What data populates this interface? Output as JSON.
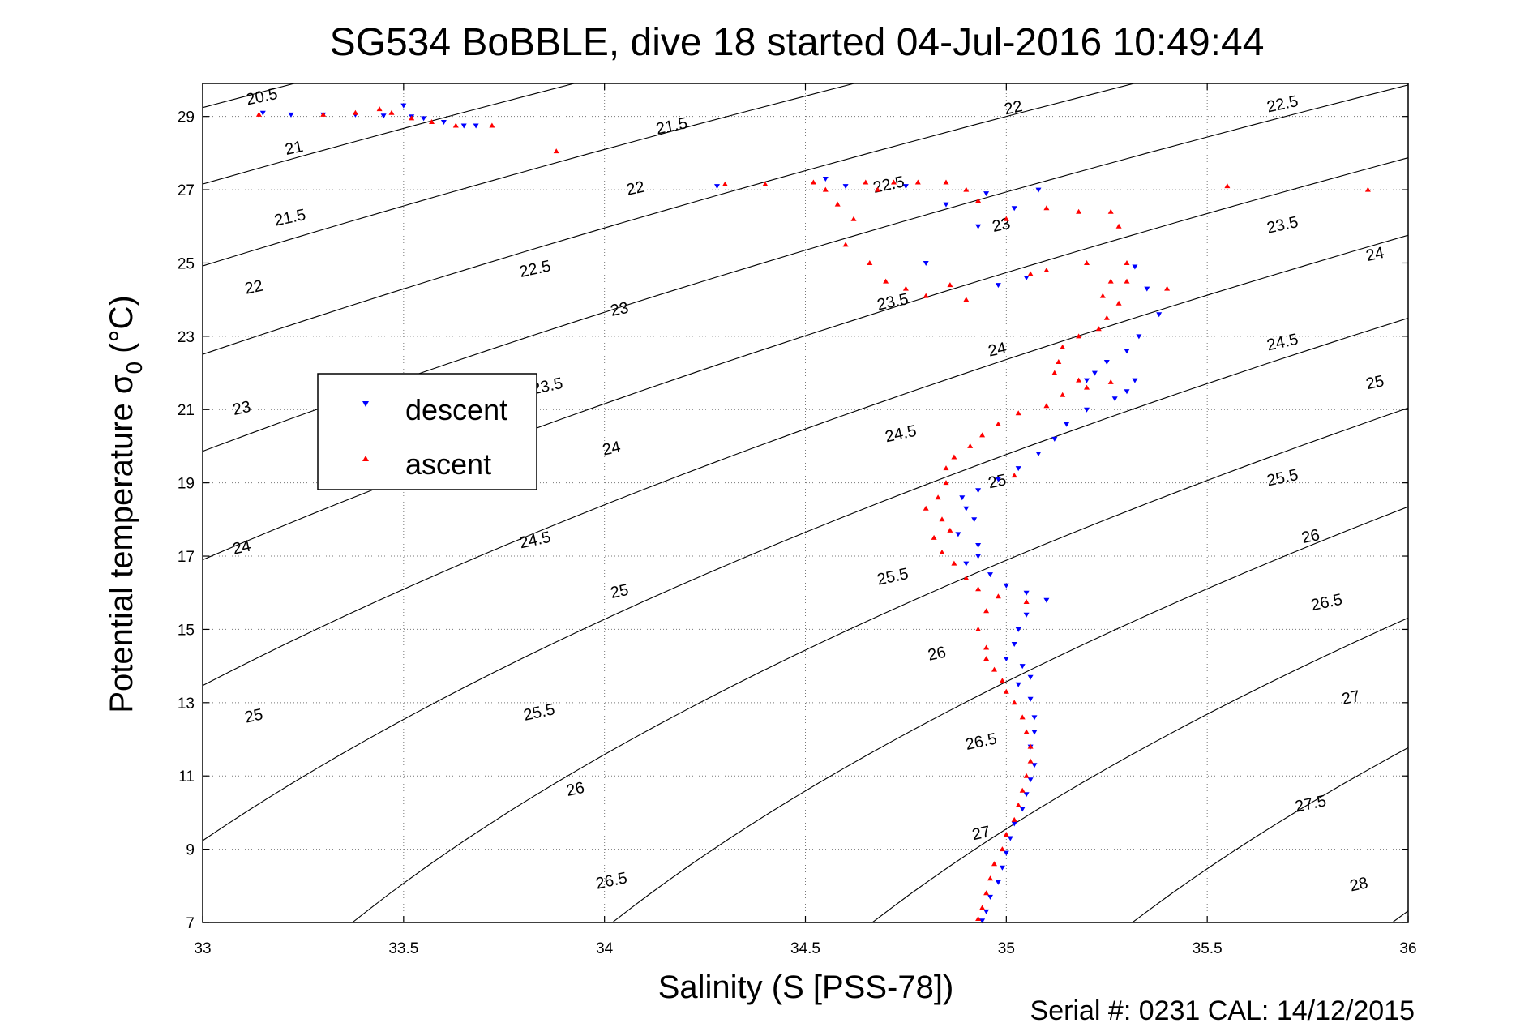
{
  "chart_data": {
    "type": "scatter",
    "title": "SG534 BoBBLE, dive 18 started 04-Jul-2016 10:49:44",
    "xlabel": "Salinity (S [PSS-78])",
    "ylabel_main": "Potential temperature σ",
    "ylabel_sub": "0",
    "ylabel_unit": "(°C)",
    "footer": "Serial #: 0231  CAL: 14/12/2015",
    "xlim": [
      33,
      36
    ],
    "ylim": [
      7,
      29.9
    ],
    "xticks": [
      33,
      33.5,
      34,
      34.5,
      35,
      35.5,
      36
    ],
    "xtick_labels": [
      "33",
      "33.5",
      "34",
      "34.5",
      "35",
      "35.5",
      "36"
    ],
    "yticks": [
      7,
      9,
      11,
      13,
      15,
      17,
      19,
      21,
      23,
      25,
      27,
      29
    ],
    "ytick_labels": [
      "7",
      "9",
      "11",
      "13",
      "15",
      "17",
      "19",
      "21",
      "23",
      "25",
      "27",
      "29"
    ],
    "grid": true,
    "legend": {
      "placement": "left-middle",
      "entries": [
        "descent",
        "ascent"
      ]
    },
    "series": [
      {
        "name": "descent",
        "color": "#0000ff",
        "marker": "triangle-down",
        "points": [
          [
            33.15,
            29.1
          ],
          [
            33.22,
            29.05
          ],
          [
            33.3,
            29.05
          ],
          [
            33.38,
            29.05
          ],
          [
            33.45,
            29.02
          ],
          [
            33.5,
            29.3
          ],
          [
            33.52,
            29.0
          ],
          [
            33.55,
            28.95
          ],
          [
            33.6,
            28.85
          ],
          [
            33.65,
            28.75
          ],
          [
            33.68,
            28.75
          ],
          [
            34.28,
            27.1
          ],
          [
            34.55,
            27.3
          ],
          [
            34.6,
            27.1
          ],
          [
            34.75,
            27.1
          ],
          [
            34.85,
            26.6
          ],
          [
            34.95,
            26.9
          ],
          [
            35.02,
            26.5
          ],
          [
            35.08,
            27.0
          ],
          [
            34.93,
            26.0
          ],
          [
            34.8,
            25.0
          ],
          [
            34.98,
            24.4
          ],
          [
            35.05,
            24.6
          ],
          [
            35.32,
            24.9
          ],
          [
            35.35,
            24.3
          ],
          [
            35.38,
            23.6
          ],
          [
            35.33,
            23.0
          ],
          [
            35.3,
            22.6
          ],
          [
            35.25,
            22.3
          ],
          [
            35.22,
            22.0
          ],
          [
            35.2,
            21.8
          ],
          [
            35.32,
            21.8
          ],
          [
            35.3,
            21.5
          ],
          [
            35.27,
            21.3
          ],
          [
            35.2,
            21.0
          ],
          [
            35.15,
            20.6
          ],
          [
            35.12,
            20.2
          ],
          [
            35.08,
            19.8
          ],
          [
            35.03,
            19.4
          ],
          [
            34.98,
            19.1
          ],
          [
            34.93,
            18.8
          ],
          [
            34.89,
            18.6
          ],
          [
            34.9,
            18.3
          ],
          [
            34.92,
            18.0
          ],
          [
            34.88,
            17.6
          ],
          [
            34.93,
            17.3
          ],
          [
            34.93,
            17.0
          ],
          [
            34.9,
            16.8
          ],
          [
            34.96,
            16.5
          ],
          [
            35.0,
            16.2
          ],
          [
            35.05,
            16.0
          ],
          [
            35.1,
            15.8
          ],
          [
            35.05,
            15.4
          ],
          [
            35.03,
            15.0
          ],
          [
            35.02,
            14.6
          ],
          [
            35.0,
            14.2
          ],
          [
            35.04,
            14.0
          ],
          [
            35.06,
            13.7
          ],
          [
            35.03,
            13.5
          ],
          [
            35.06,
            13.1
          ],
          [
            35.07,
            12.6
          ],
          [
            35.07,
            12.2
          ],
          [
            35.06,
            11.8
          ],
          [
            35.07,
            11.3
          ],
          [
            35.06,
            10.9
          ],
          [
            35.05,
            10.5
          ],
          [
            35.04,
            10.1
          ],
          [
            35.02,
            9.7
          ],
          [
            35.01,
            9.3
          ],
          [
            35.0,
            8.9
          ],
          [
            34.99,
            8.5
          ],
          [
            34.98,
            8.1
          ],
          [
            34.96,
            7.7
          ],
          [
            34.95,
            7.3
          ],
          [
            34.94,
            7.05
          ]
        ]
      },
      {
        "name": "ascent",
        "color": "#ff0000",
        "marker": "triangle-up",
        "points": [
          [
            33.14,
            29.05
          ],
          [
            33.3,
            29.05
          ],
          [
            33.38,
            29.1
          ],
          [
            33.44,
            29.2
          ],
          [
            33.47,
            29.1
          ],
          [
            33.52,
            28.95
          ],
          [
            33.57,
            28.85
          ],
          [
            33.63,
            28.75
          ],
          [
            33.72,
            28.75
          ],
          [
            33.88,
            28.05
          ],
          [
            34.3,
            27.15
          ],
          [
            34.4,
            27.15
          ],
          [
            34.52,
            27.2
          ],
          [
            34.55,
            27.0
          ],
          [
            34.58,
            26.6
          ],
          [
            34.65,
            27.2
          ],
          [
            34.68,
            27.0
          ],
          [
            34.72,
            27.2
          ],
          [
            34.78,
            27.2
          ],
          [
            34.85,
            27.2
          ],
          [
            34.9,
            27.0
          ],
          [
            34.93,
            26.7
          ],
          [
            35.0,
            26.2
          ],
          [
            35.1,
            26.5
          ],
          [
            35.18,
            26.4
          ],
          [
            35.26,
            26.4
          ],
          [
            35.28,
            26.0
          ],
          [
            34.62,
            26.2
          ],
          [
            34.6,
            25.5
          ],
          [
            34.66,
            25.0
          ],
          [
            34.7,
            24.5
          ],
          [
            34.75,
            24.3
          ],
          [
            34.8,
            24.1
          ],
          [
            34.86,
            24.4
          ],
          [
            34.9,
            24.0
          ],
          [
            35.06,
            24.7
          ],
          [
            35.1,
            24.8
          ],
          [
            35.2,
            25.0
          ],
          [
            35.3,
            25.0
          ],
          [
            35.26,
            24.5
          ],
          [
            35.24,
            24.1
          ],
          [
            35.3,
            24.5
          ],
          [
            35.28,
            23.9
          ],
          [
            35.25,
            23.5
          ],
          [
            35.23,
            23.2
          ],
          [
            35.18,
            23.0
          ],
          [
            35.14,
            22.7
          ],
          [
            35.13,
            22.3
          ],
          [
            35.12,
            22.0
          ],
          [
            35.18,
            21.8
          ],
          [
            35.26,
            21.75
          ],
          [
            35.2,
            21.6
          ],
          [
            35.14,
            21.4
          ],
          [
            35.1,
            21.1
          ],
          [
            35.03,
            20.9
          ],
          [
            34.98,
            20.6
          ],
          [
            34.94,
            20.3
          ],
          [
            34.91,
            20.0
          ],
          [
            34.87,
            19.7
          ],
          [
            34.85,
            19.4
          ],
          [
            34.85,
            19.0
          ],
          [
            34.83,
            18.6
          ],
          [
            34.8,
            18.3
          ],
          [
            34.84,
            18.0
          ],
          [
            34.86,
            17.7
          ],
          [
            34.82,
            17.5
          ],
          [
            34.84,
            17.1
          ],
          [
            34.87,
            16.8
          ],
          [
            34.9,
            16.4
          ],
          [
            34.93,
            16.1
          ],
          [
            34.98,
            15.9
          ],
          [
            35.05,
            15.75
          ],
          [
            34.95,
            15.5
          ],
          [
            34.93,
            15.0
          ],
          [
            34.95,
            14.5
          ],
          [
            34.95,
            14.2
          ],
          [
            34.97,
            13.9
          ],
          [
            34.99,
            13.6
          ],
          [
            35.0,
            13.3
          ],
          [
            35.02,
            13.0
          ],
          [
            35.04,
            12.6
          ],
          [
            35.05,
            12.2
          ],
          [
            35.06,
            11.8
          ],
          [
            35.06,
            11.4
          ],
          [
            35.05,
            11.0
          ],
          [
            35.04,
            10.6
          ],
          [
            35.03,
            10.2
          ],
          [
            35.02,
            9.8
          ],
          [
            35.0,
            9.4
          ],
          [
            34.99,
            9.0
          ],
          [
            34.97,
            8.6
          ],
          [
            34.96,
            8.2
          ],
          [
            34.95,
            7.8
          ],
          [
            34.94,
            7.4
          ],
          [
            34.93,
            7.1
          ],
          [
            35.4,
            24.3
          ],
          [
            35.55,
            27.1
          ],
          [
            35.9,
            27.0
          ],
          [
            35.02,
            19.2
          ]
        ]
      }
    ],
    "contours": {
      "levels": [
        20.5,
        21,
        21.5,
        22,
        22.5,
        23,
        23.5,
        24,
        24.5,
        25,
        25.5,
        26,
        26.5,
        27,
        27.5,
        28
      ],
      "labels": [
        {
          "text": "20.5",
          "x": 33.15,
          "y": 29.4
        },
        {
          "text": "21",
          "x": 33.23,
          "y": 28.0
        },
        {
          "text": "21.5",
          "x": 33.22,
          "y": 26.1
        },
        {
          "text": "22",
          "x": 33.13,
          "y": 24.2
        },
        {
          "text": "23",
          "x": 33.1,
          "y": 20.9
        },
        {
          "text": "24",
          "x": 33.1,
          "y": 17.1
        },
        {
          "text": "25",
          "x": 33.13,
          "y": 12.5
        },
        {
          "text": "21.5",
          "x": 34.17,
          "y": 28.6
        },
        {
          "text": "22",
          "x": 34.08,
          "y": 26.9
        },
        {
          "text": "22.5",
          "x": 33.83,
          "y": 24.7
        },
        {
          "text": "23",
          "x": 34.04,
          "y": 23.6
        },
        {
          "text": "23.5",
          "x": 33.86,
          "y": 21.5
        },
        {
          "text": "24",
          "x": 34.02,
          "y": 19.8
        },
        {
          "text": "24.5",
          "x": 33.83,
          "y": 17.3
        },
        {
          "text": "25",
          "x": 34.04,
          "y": 15.9
        },
        {
          "text": "25.5",
          "x": 33.84,
          "y": 12.6
        },
        {
          "text": "26",
          "x": 33.93,
          "y": 10.5
        },
        {
          "text": "26.5",
          "x": 34.02,
          "y": 8.0
        },
        {
          "text": "22",
          "x": 35.02,
          "y": 29.1
        },
        {
          "text": "22.5",
          "x": 34.71,
          "y": 27.0
        },
        {
          "text": "23",
          "x": 34.99,
          "y": 25.9
        },
        {
          "text": "23.5",
          "x": 34.72,
          "y": 23.8
        },
        {
          "text": "24",
          "x": 34.98,
          "y": 22.5
        },
        {
          "text": "24.5",
          "x": 34.74,
          "y": 20.2
        },
        {
          "text": "25",
          "x": 34.98,
          "y": 18.9
        },
        {
          "text": "25.5",
          "x": 34.72,
          "y": 16.3
        },
        {
          "text": "26",
          "x": 34.83,
          "y": 14.2
        },
        {
          "text": "26.5",
          "x": 34.94,
          "y": 11.8
        },
        {
          "text": "27",
          "x": 34.94,
          "y": 9.3
        },
        {
          "text": "22.5",
          "x": 35.69,
          "y": 29.2
        },
        {
          "text": "23.5",
          "x": 35.69,
          "y": 25.9
        },
        {
          "text": "24",
          "x": 35.92,
          "y": 25.1
        },
        {
          "text": "24.5",
          "x": 35.69,
          "y": 22.7
        },
        {
          "text": "25",
          "x": 35.92,
          "y": 21.6
        },
        {
          "text": "25.5",
          "x": 35.69,
          "y": 19.0
        },
        {
          "text": "26",
          "x": 35.76,
          "y": 17.4
        },
        {
          "text": "26.5",
          "x": 35.8,
          "y": 15.6
        },
        {
          "text": "27",
          "x": 35.86,
          "y": 13.0
        },
        {
          "text": "27.5",
          "x": 35.76,
          "y": 10.1
        },
        {
          "text": "28",
          "x": 35.88,
          "y": 7.9
        }
      ]
    }
  }
}
